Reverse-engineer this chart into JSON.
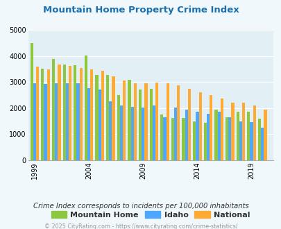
{
  "title": "Mountain Home Property Crime Index",
  "title_color": "#1a6faf",
  "subtitle": "Crime Index corresponds to incidents per 100,000 inhabitants",
  "footer": "© 2025 CityRating.com - https://www.cityrating.com/crime-statistics/",
  "years": [
    1999,
    2000,
    2001,
    2002,
    2003,
    2004,
    2005,
    2006,
    2007,
    2008,
    2009,
    2010,
    2011,
    2012,
    2013,
    2014,
    2015,
    2016,
    2017,
    2018,
    2019,
    2020
  ],
  "mountain_home": [
    4480,
    3520,
    3880,
    3660,
    3650,
    4020,
    3260,
    3260,
    2500,
    3090,
    2700,
    2730,
    1760,
    1630,
    1610,
    1500,
    1430,
    1950,
    1660,
    1870,
    1870,
    1590
  ],
  "idaho": [
    2950,
    2920,
    2940,
    2950,
    2940,
    2760,
    2700,
    2260,
    2100,
    2060,
    2020,
    2090,
    1660,
    2020,
    1940,
    1870,
    1780,
    1870,
    1660,
    1480,
    1470,
    1250
  ],
  "national": [
    3600,
    3490,
    3680,
    3620,
    3530,
    3490,
    3430,
    3210,
    3060,
    2960,
    2960,
    2980,
    2950,
    2880,
    2740,
    2600,
    2490,
    2360,
    2200,
    2200,
    2100,
    1950
  ],
  "mountain_home_color": "#8dc63f",
  "idaho_color": "#4da6ff",
  "national_color": "#ffaa33",
  "background_color": "#f0f8fb",
  "plot_bg_color": "#e2eff5",
  "ylim": [
    0,
    5000
  ],
  "yticks": [
    0,
    1000,
    2000,
    3000,
    4000,
    5000
  ],
  "xtick_labels": [
    "1999",
    "2004",
    "2009",
    "2014",
    "2019"
  ],
  "xtick_positions": [
    1999,
    2004,
    2009,
    2014,
    2019
  ]
}
